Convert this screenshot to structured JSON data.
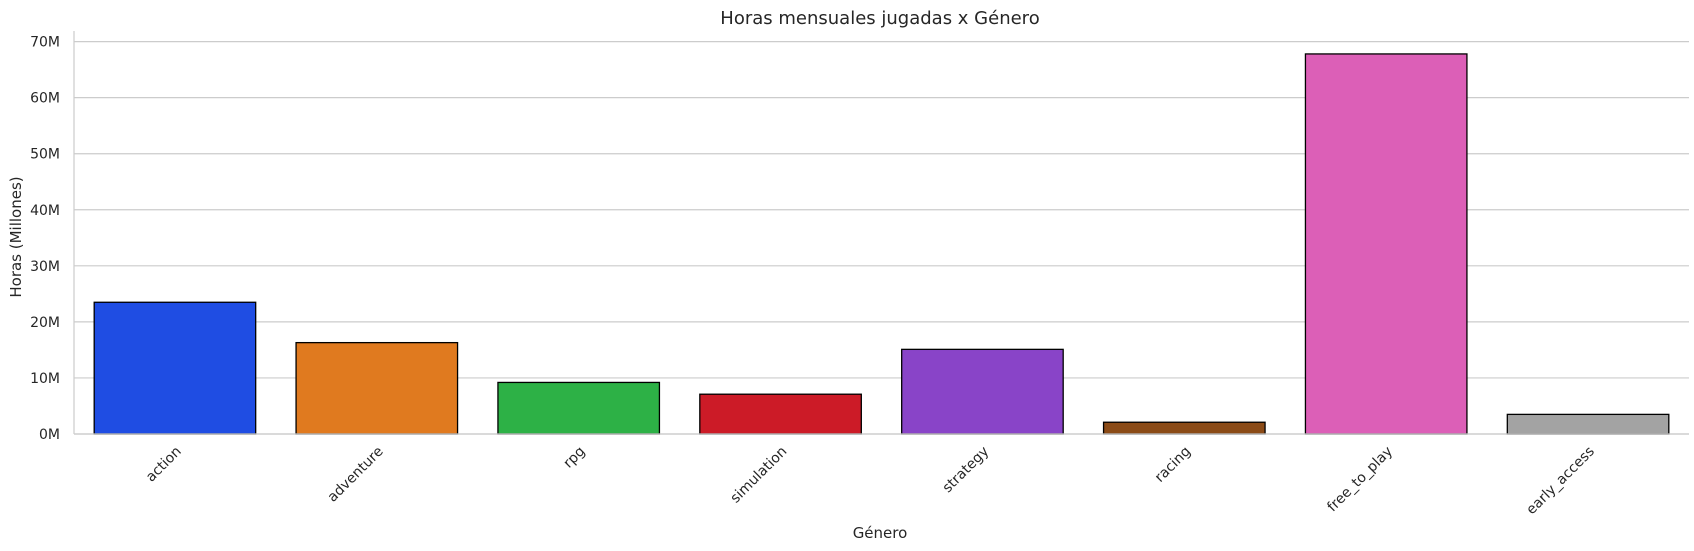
{
  "chart_data": {
    "type": "bar",
    "title": "Horas mensuales jugadas x Género",
    "xlabel": "Género",
    "ylabel": "Horas (Millones)",
    "categories": [
      "action",
      "adventure",
      "rpg",
      "simulation",
      "strategy",
      "racing",
      "free_to_play",
      "early_access"
    ],
    "values": [
      23.5,
      16.3,
      9.2,
      7.1,
      15.1,
      2.1,
      67.8,
      3.5
    ],
    "unit": "M",
    "colors": [
      "#1f4de3",
      "#e07a1f",
      "#2db146",
      "#cc1b27",
      "#8944c8",
      "#8b4b17",
      "#dc5fb7",
      "#a3a3a3"
    ],
    "ylim": [
      0,
      71
    ],
    "yticks": [
      0,
      10,
      20,
      30,
      40,
      50,
      60,
      70
    ],
    "ytick_labels": [
      "0M",
      "10M",
      "20M",
      "30M",
      "40M",
      "50M",
      "60M",
      "70M"
    ],
    "grid": "y",
    "legend": "none"
  }
}
